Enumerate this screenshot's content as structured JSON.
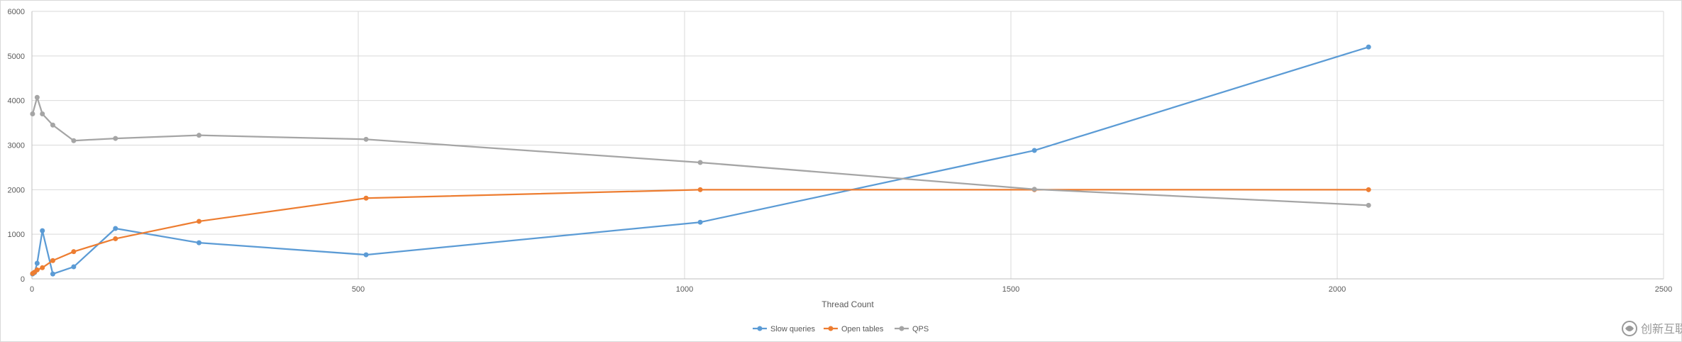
{
  "chart_data": {
    "type": "line",
    "title": "",
    "xlabel": "Thread Count",
    "ylabel": "",
    "xlim": [
      0,
      2500
    ],
    "ylim": [
      0,
      6000
    ],
    "x_ticks": [
      0,
      500,
      1000,
      1500,
      2000,
      2500
    ],
    "y_ticks": [
      0,
      1000,
      2000,
      3000,
      4000,
      5000,
      6000
    ],
    "grid": true,
    "legend_position": "bottom",
    "series": [
      {
        "name": "Slow queries",
        "color": "#5b9bd5",
        "points": [
          [
            1,
            110
          ],
          [
            4,
            140
          ],
          [
            8,
            350
          ],
          [
            16,
            1080
          ],
          [
            32,
            110
          ],
          [
            64,
            270
          ],
          [
            128,
            1130
          ],
          [
            256,
            810
          ],
          [
            512,
            540
          ],
          [
            1024,
            1270
          ],
          [
            1536,
            2880
          ],
          [
            2048,
            5200
          ]
        ]
      },
      {
        "name": "Open tables",
        "color": "#ed7d31",
        "points": [
          [
            1,
            120
          ],
          [
            4,
            150
          ],
          [
            8,
            200
          ],
          [
            16,
            250
          ],
          [
            32,
            410
          ],
          [
            64,
            610
          ],
          [
            128,
            900
          ],
          [
            256,
            1290
          ],
          [
            512,
            1810
          ],
          [
            1024,
            2000
          ],
          [
            1536,
            2000
          ],
          [
            2048,
            2000
          ]
        ]
      },
      {
        "name": "QPS",
        "color": "#a5a5a5",
        "points": [
          [
            1,
            3700
          ],
          [
            8,
            4070
          ],
          [
            16,
            3700
          ],
          [
            32,
            3450
          ],
          [
            64,
            3100
          ],
          [
            128,
            3150
          ],
          [
            256,
            3220
          ],
          [
            512,
            3130
          ],
          [
            1024,
            2610
          ],
          [
            1536,
            2010
          ],
          [
            2048,
            1650
          ]
        ]
      }
    ]
  },
  "watermark": {
    "text": "创新互联",
    "logo_color": "#9a9a9a"
  }
}
